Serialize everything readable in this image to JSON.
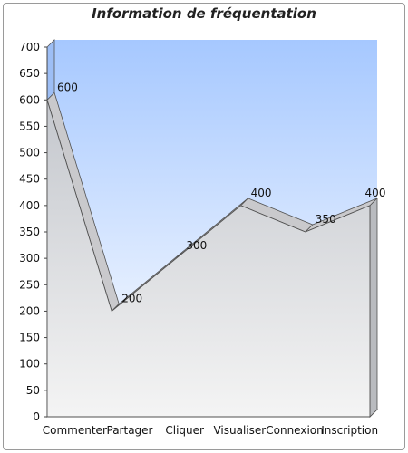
{
  "chart_data": {
    "type": "area",
    "title": "Information de fréquentation",
    "xlabel": "",
    "ylabel": "",
    "categories": [
      "Commenter",
      "Partager",
      "Cliquer",
      "Visualiser",
      "Connexion",
      "Inscription"
    ],
    "series": [
      {
        "values": [
          600,
          200,
          300,
          400,
          350,
          400
        ]
      }
    ],
    "ylim": [
      0,
      700
    ],
    "yticks": [
      0,
      50,
      100,
      150,
      200,
      250,
      300,
      350,
      400,
      450,
      500,
      550,
      600,
      650,
      700
    ],
    "grid": false,
    "legend": "none",
    "style": "3d",
    "colors": {
      "background_top": "#a6c8ff",
      "background_bottom": "#ffffff",
      "area_top": "#c4c7cd",
      "area_bottom": "#f4f4f4",
      "edge": "#505050"
    }
  }
}
